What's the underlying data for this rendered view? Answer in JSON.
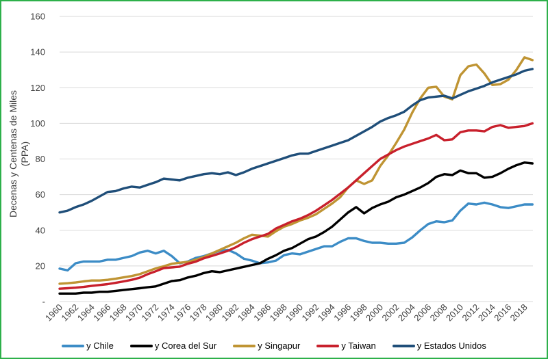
{
  "border_color": "#2DB04A",
  "grid_color": "#D9D9D9",
  "tick_text_color": "#404040",
  "chart_data": {
    "type": "line",
    "title": "",
    "ylabel_line1": "Decenas y Centenas de Miles",
    "ylabel_line2": "(PPA)",
    "xlim": [
      1960,
      2019
    ],
    "ylim": [
      0,
      160
    ],
    "grid": "horizontal",
    "legend_position": "bottom",
    "x_years_start": 1960,
    "x_step_per_point": 1,
    "x_tick_labels": [
      "1960",
      "1962",
      "1964",
      "1966",
      "1968",
      "1970",
      "1972",
      "1974",
      "1976",
      "1978",
      "1980",
      "1982",
      "1984",
      "1986",
      "1988",
      "1990",
      "1992",
      "1994",
      "1996",
      "1998",
      "2000",
      "2002",
      "2004",
      "2006",
      "2008",
      "2010",
      "2012",
      "2014",
      "2016",
      "2018"
    ],
    "y_ticks": [
      {
        "value": 0,
        "label": "-"
      },
      {
        "value": 20,
        "label": "20"
      },
      {
        "value": 40,
        "label": "40"
      },
      {
        "value": 60,
        "label": "60"
      },
      {
        "value": 80,
        "label": "80"
      },
      {
        "value": 100,
        "label": "100"
      },
      {
        "value": 120,
        "label": "120"
      },
      {
        "value": 140,
        "label": "140"
      },
      {
        "value": 160,
        "label": "160"
      }
    ],
    "series": [
      {
        "name": "y Chile",
        "color": "#3C8CC6",
        "values": [
          18.5,
          17.5,
          21.5,
          22.5,
          22.5,
          22.5,
          23.5,
          23.5,
          24.5,
          25.5,
          27.5,
          28.5,
          27,
          28.5,
          25.5,
          21.5,
          22.5,
          24.5,
          25.5,
          27,
          28.5,
          29,
          27,
          24,
          23,
          21.5,
          22,
          23,
          26,
          27,
          26.5,
          28,
          29.5,
          31,
          31,
          33.5,
          35.5,
          35.5,
          34,
          33,
          33,
          32.5,
          32.5,
          33,
          36,
          40,
          43.5,
          45,
          44.5,
          45.5,
          51,
          55,
          54.5,
          55.5,
          54.5,
          53,
          52.5,
          53.5,
          54.5,
          54.5
        ]
      },
      {
        "name": "y Corea del Sur",
        "color": "#000000",
        "values": [
          4.5,
          4.5,
          4.5,
          5,
          5,
          5.5,
          5.5,
          6,
          6.5,
          7,
          7.5,
          8,
          8.5,
          10,
          11.5,
          12,
          13.5,
          14.5,
          16,
          17,
          16.5,
          17.5,
          18.5,
          19.5,
          20.5,
          21.5,
          24,
          26,
          28.5,
          30,
          32.5,
          35,
          36.5,
          39,
          42,
          46,
          50,
          53,
          49.5,
          52.5,
          54.5,
          56,
          58.5,
          60,
          62,
          64,
          66.5,
          70,
          71.5,
          71,
          73.5,
          72,
          72,
          69.5,
          70,
          72,
          74.5,
          76.5,
          78,
          77.5
        ]
      },
      {
        "name": "y Singapur",
        "color": "#BF9433",
        "values": [
          10,
          10.3,
          10.7,
          11.3,
          11.8,
          11.8,
          12.2,
          12.8,
          13.6,
          14.3,
          15.4,
          17,
          18.6,
          19.8,
          21.2,
          21.8,
          22.2,
          23.5,
          25,
          27,
          29,
          31,
          33,
          35.5,
          37.5,
          37,
          36.5,
          39.5,
          42,
          43.5,
          45.5,
          47,
          49,
          52,
          55,
          58.5,
          64,
          68,
          66,
          68,
          76,
          82,
          89,
          96.5,
          106,
          114,
          120,
          120.5,
          115,
          113.5,
          127,
          132,
          133,
          128,
          121.5,
          122,
          124.5,
          130,
          137,
          135.5
        ]
      },
      {
        "name": "y Taiwan",
        "color": "#C8202C",
        "values": [
          7.2,
          7.5,
          7.8,
          8.2,
          8.8,
          9.3,
          9.8,
          10.5,
          11.3,
          12.2,
          13.4,
          15.4,
          17,
          18.8,
          19.2,
          19.6,
          21.2,
          22.4,
          24.3,
          25.6,
          27,
          28.5,
          30.5,
          33,
          35,
          36.5,
          38,
          41,
          43,
          45,
          46.5,
          48.5,
          51,
          54,
          57,
          60.5,
          64,
          68,
          72,
          76,
          80,
          82.5,
          85,
          87,
          88.5,
          90,
          91.5,
          93.5,
          90.5,
          91,
          95,
          96,
          96,
          95.5,
          98,
          99,
          97.5,
          98,
          98.5,
          100
        ]
      },
      {
        "name": "y Estados Unidos",
        "color": "#1F4E79",
        "values": [
          50,
          51,
          53,
          54.5,
          56.5,
          59,
          61.5,
          62,
          63.5,
          64.5,
          64,
          65.5,
          67,
          69,
          68.5,
          68,
          69.5,
          70.5,
          71.5,
          72,
          71.5,
          72.5,
          71,
          72.5,
          74.5,
          76,
          77.5,
          79,
          80.5,
          82,
          83,
          83,
          84.5,
          86,
          87.5,
          89,
          90.5,
          93,
          95.5,
          98,
          101,
          103,
          104.5,
          106.5,
          110,
          113,
          114.5,
          115,
          115.5,
          114,
          116,
          118,
          119.5,
          121,
          123,
          124.5,
          126,
          127.5,
          129.5,
          130.5
        ]
      }
    ]
  }
}
